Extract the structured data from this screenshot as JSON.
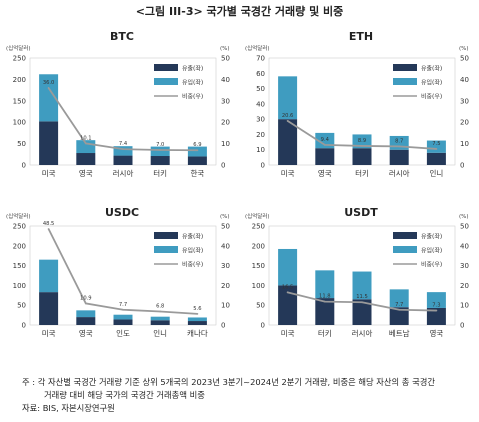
{
  "figure_title": "<그림 III-3> 국가별 국경간 거래량 및 비중",
  "notes": {
    "line1": "주  : 각 자산별 국경간 거래량 기준 상위 5개국의 2023년 3분기~2024년 2분기 거래량, 비중은 해당 자산의 총 국경간",
    "line2": "거래량 대비 해당 국가의 국경간 거래총액 비중",
    "source": "자료: BIS, 자본시장연구원"
  },
  "colors": {
    "outflow": "#243858",
    "inflow": "#3f9cc0",
    "share": "#9a9a9a"
  },
  "chart_data": [
    {
      "type": "bar",
      "title": "BTC",
      "left_unit": "(십억달러)",
      "right_unit": "(%)",
      "categories": [
        "미국",
        "영국",
        "러시아",
        "터키",
        "한국"
      ],
      "ylim": [
        0,
        250
      ],
      "y_ticks": [
        0,
        50,
        100,
        150,
        200,
        250
      ],
      "y2lim": [
        0,
        50
      ],
      "y2_ticks": [
        0,
        10,
        20,
        30,
        40,
        50
      ],
      "legend": [
        "유출(좌)",
        "유입(좌)",
        "비중(우)"
      ],
      "series": [
        {
          "name": "유출(좌)",
          "values": [
            102,
            28,
            22,
            21,
            20
          ]
        },
        {
          "name": "유입(좌)",
          "values": [
            110,
            30,
            22,
            22,
            23
          ]
        },
        {
          "name": "비중(우)",
          "values": [
            36.0,
            10.1,
            7.4,
            7.0,
            6.9
          ]
        }
      ],
      "share_labels": [
        "36.0",
        "10.1",
        "7.4",
        "7.0",
        "6.9"
      ]
    },
    {
      "type": "bar",
      "title": "ETH",
      "left_unit": "(십억달러)",
      "right_unit": "(%)",
      "categories": [
        "미국",
        "영국",
        "터키",
        "러시아",
        "인니"
      ],
      "ylim": [
        0,
        70
      ],
      "y_ticks": [
        0,
        10,
        20,
        30,
        40,
        50,
        60,
        70
      ],
      "y2lim": [
        0,
        50
      ],
      "y2_ticks": [
        0,
        10,
        20,
        30,
        40,
        50
      ],
      "legend": [
        "유출(좌)",
        "유입(좌)",
        "비중(우)"
      ],
      "series": [
        {
          "name": "유출(좌)",
          "values": [
            30,
            11,
            11,
            10,
            8
          ]
        },
        {
          "name": "유입(좌)",
          "values": [
            28,
            10,
            9,
            9,
            8
          ]
        },
        {
          "name": "비중(우)",
          "values": [
            20.6,
            9.4,
            8.9,
            8.7,
            7.5
          ]
        }
      ],
      "share_labels": [
        "20.6",
        "9.4",
        "8.9",
        "8.7",
        "7.5"
      ]
    },
    {
      "type": "bar",
      "title": "USDC",
      "left_unit": "(십억달러)",
      "right_unit": "(%)",
      "categories": [
        "미국",
        "영국",
        "인도",
        "인니",
        "캐나다"
      ],
      "ylim": [
        0,
        250
      ],
      "y_ticks": [
        0,
        50,
        100,
        150,
        200,
        250
      ],
      "y2lim": [
        0,
        50
      ],
      "y2_ticks": [
        0,
        10,
        20,
        30,
        40,
        50
      ],
      "legend": [
        "유출(좌)",
        "유입(좌)",
        "비중(우)"
      ],
      "series": [
        {
          "name": "유출(좌)",
          "values": [
            83,
            20,
            14,
            12,
            10
          ]
        },
        {
          "name": "유입(좌)",
          "values": [
            82,
            17,
            12,
            9,
            9
          ]
        },
        {
          "name": "비중(우)",
          "values": [
            48.5,
            10.9,
            7.7,
            6.8,
            5.6
          ]
        }
      ],
      "share_labels": [
        "48.5",
        "10.9",
        "7.7",
        "6.8",
        "5.6"
      ]
    },
    {
      "type": "bar",
      "title": "USDT",
      "left_unit": "(십억달러)",
      "right_unit": "(%)",
      "categories": [
        "미국",
        "터키",
        "러시아",
        "베트남",
        "영국"
      ],
      "ylim": [
        0,
        250
      ],
      "y_ticks": [
        0,
        50,
        100,
        150,
        200,
        250
      ],
      "y2lim": [
        0,
        50
      ],
      "y2_ticks": [
        0,
        10,
        20,
        30,
        40,
        50
      ],
      "legend": [
        "유출(좌)",
        "유입(좌)",
        "비중(우)"
      ],
      "series": [
        {
          "name": "유출(좌)",
          "values": [
            100,
            68,
            65,
            45,
            43
          ]
        },
        {
          "name": "유입(좌)",
          "values": [
            92,
            70,
            70,
            45,
            40
          ]
        },
        {
          "name": "비중(우)",
          "values": [
            16.5,
            11.8,
            11.5,
            7.7,
            7.3
          ]
        }
      ],
      "share_labels": [
        "16.5",
        "11.8",
        "11.5",
        "7.7",
        "7.3"
      ]
    }
  ]
}
